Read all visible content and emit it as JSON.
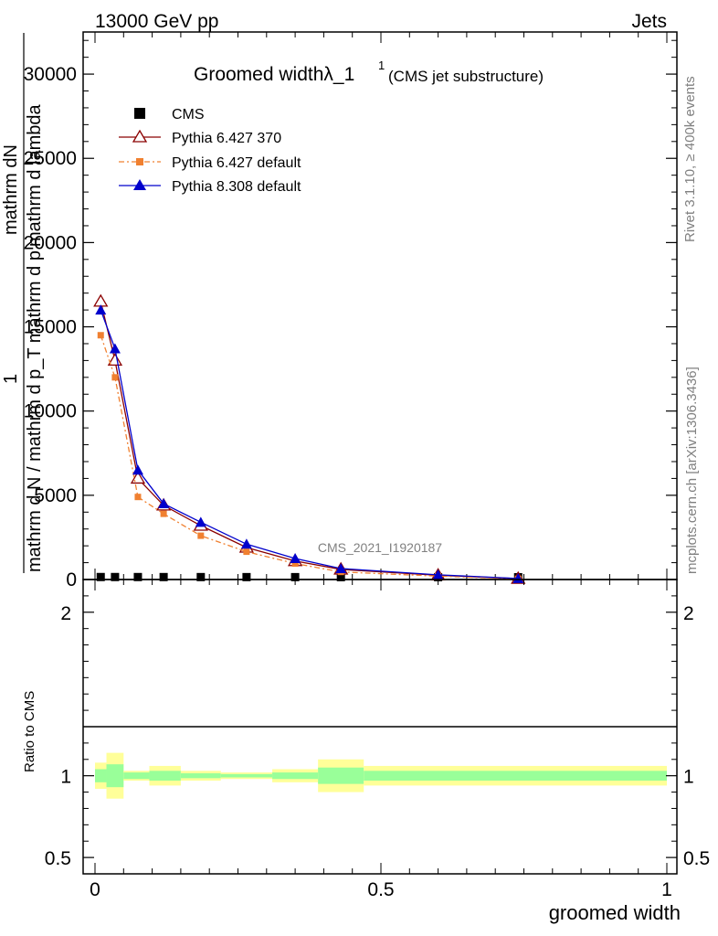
{
  "header": {
    "energy": "13000 GeV pp",
    "category": "Jets"
  },
  "title": {
    "main": "Groomed width",
    "symbol": "λ_1",
    "superscript": "1",
    "subtitle": "(CMS jet substructure)"
  },
  "side": {
    "rivet": "Rivet 3.1.10, ≥ 400k events",
    "mcplots": "mcplots.cern.ch [arXiv:1306.3436]"
  },
  "watermark": "CMS_2021_I1920187",
  "axes": {
    "ylabel_num": "1",
    "ylabel_num2": "mathrm dN",
    "ylabel_den": "mathrm d N / mathrm d p_T mathrm d p_T mathrm d lambda",
    "ylabel_den_lines": [
      "mathrm d N / mathrm d p_T mathrm d p",
      "mathrm d lambda"
    ],
    "ratio_ylabel": "Ratio to CMS",
    "xlabel": "groomed width"
  },
  "legend": {
    "entries": [
      {
        "label": "CMS",
        "color": "#000000",
        "marker": "square"
      },
      {
        "label": "Pythia 6.427 370",
        "color": "#8b0000",
        "marker": "open-triangle"
      },
      {
        "label": "Pythia 6.427 default",
        "color": "#f08030",
        "marker": "small-square"
      },
      {
        "label": "Pythia 8.308 default",
        "color": "#0000cc",
        "marker": "triangle"
      }
    ]
  },
  "chart_data": {
    "type": "line",
    "xlim": [
      0,
      1
    ],
    "ylim": [
      0,
      32500
    ],
    "x_ticks": [
      "0",
      "0.5",
      "1"
    ],
    "y_ticks": [
      "0",
      "5000",
      "10000",
      "15000",
      "20000",
      "25000",
      "30000"
    ],
    "ratio_ylim": [
      0.4,
      2.2
    ],
    "ratio_ticks": [
      "0.5",
      "1",
      "2"
    ],
    "x": [
      0.01,
      0.035,
      0.075,
      0.12,
      0.185,
      0.265,
      0.35,
      0.43,
      0.6,
      0.74
    ],
    "series": [
      {
        "name": "CMS",
        "values": [
          12,
          12,
          11,
          10,
          9,
          8,
          6,
          4,
          2,
          1
        ]
      },
      {
        "name": "Pythia 6.427 370",
        "values": [
          16500,
          13000,
          6000,
          4400,
          3200,
          1900,
          1100,
          600,
          250,
          50
        ]
      },
      {
        "name": "Pythia 6.427 default",
        "values": [
          14500,
          12000,
          4900,
          3900,
          2600,
          1650,
          950,
          450,
          200,
          40
        ]
      },
      {
        "name": "Pythia 8.308 default",
        "values": [
          16000,
          13700,
          6500,
          4500,
          3400,
          2100,
          1250,
          650,
          280,
          60
        ]
      }
    ],
    "ratio_bands": [
      {
        "x0": 0.0,
        "x1": 0.02,
        "green": [
          0.96,
          1.04
        ],
        "yellow": [
          0.92,
          1.08
        ]
      },
      {
        "x0": 0.02,
        "x1": 0.05,
        "green": [
          0.93,
          1.07
        ],
        "yellow": [
          0.86,
          1.14
        ]
      },
      {
        "x0": 0.05,
        "x1": 0.095,
        "green": [
          0.98,
          1.02
        ],
        "yellow": [
          0.97,
          1.03
        ]
      },
      {
        "x0": 0.095,
        "x1": 0.15,
        "green": [
          0.97,
          1.03
        ],
        "yellow": [
          0.94,
          1.06
        ]
      },
      {
        "x0": 0.15,
        "x1": 0.22,
        "green": [
          0.985,
          1.015
        ],
        "yellow": [
          0.97,
          1.03
        ]
      },
      {
        "x0": 0.22,
        "x1": 0.31,
        "green": [
          0.99,
          1.01
        ],
        "yellow": [
          0.98,
          1.02
        ]
      },
      {
        "x0": 0.31,
        "x1": 0.39,
        "green": [
          0.98,
          1.02
        ],
        "yellow": [
          0.96,
          1.04
        ]
      },
      {
        "x0": 0.39,
        "x1": 0.47,
        "green": [
          0.95,
          1.05
        ],
        "yellow": [
          0.9,
          1.1
        ]
      },
      {
        "x0": 0.47,
        "x1": 1.0,
        "green": [
          0.97,
          1.03
        ],
        "yellow": [
          0.94,
          1.06
        ]
      }
    ],
    "colors": {
      "green": "#99ff99",
      "yellow": "#ffff99"
    }
  }
}
